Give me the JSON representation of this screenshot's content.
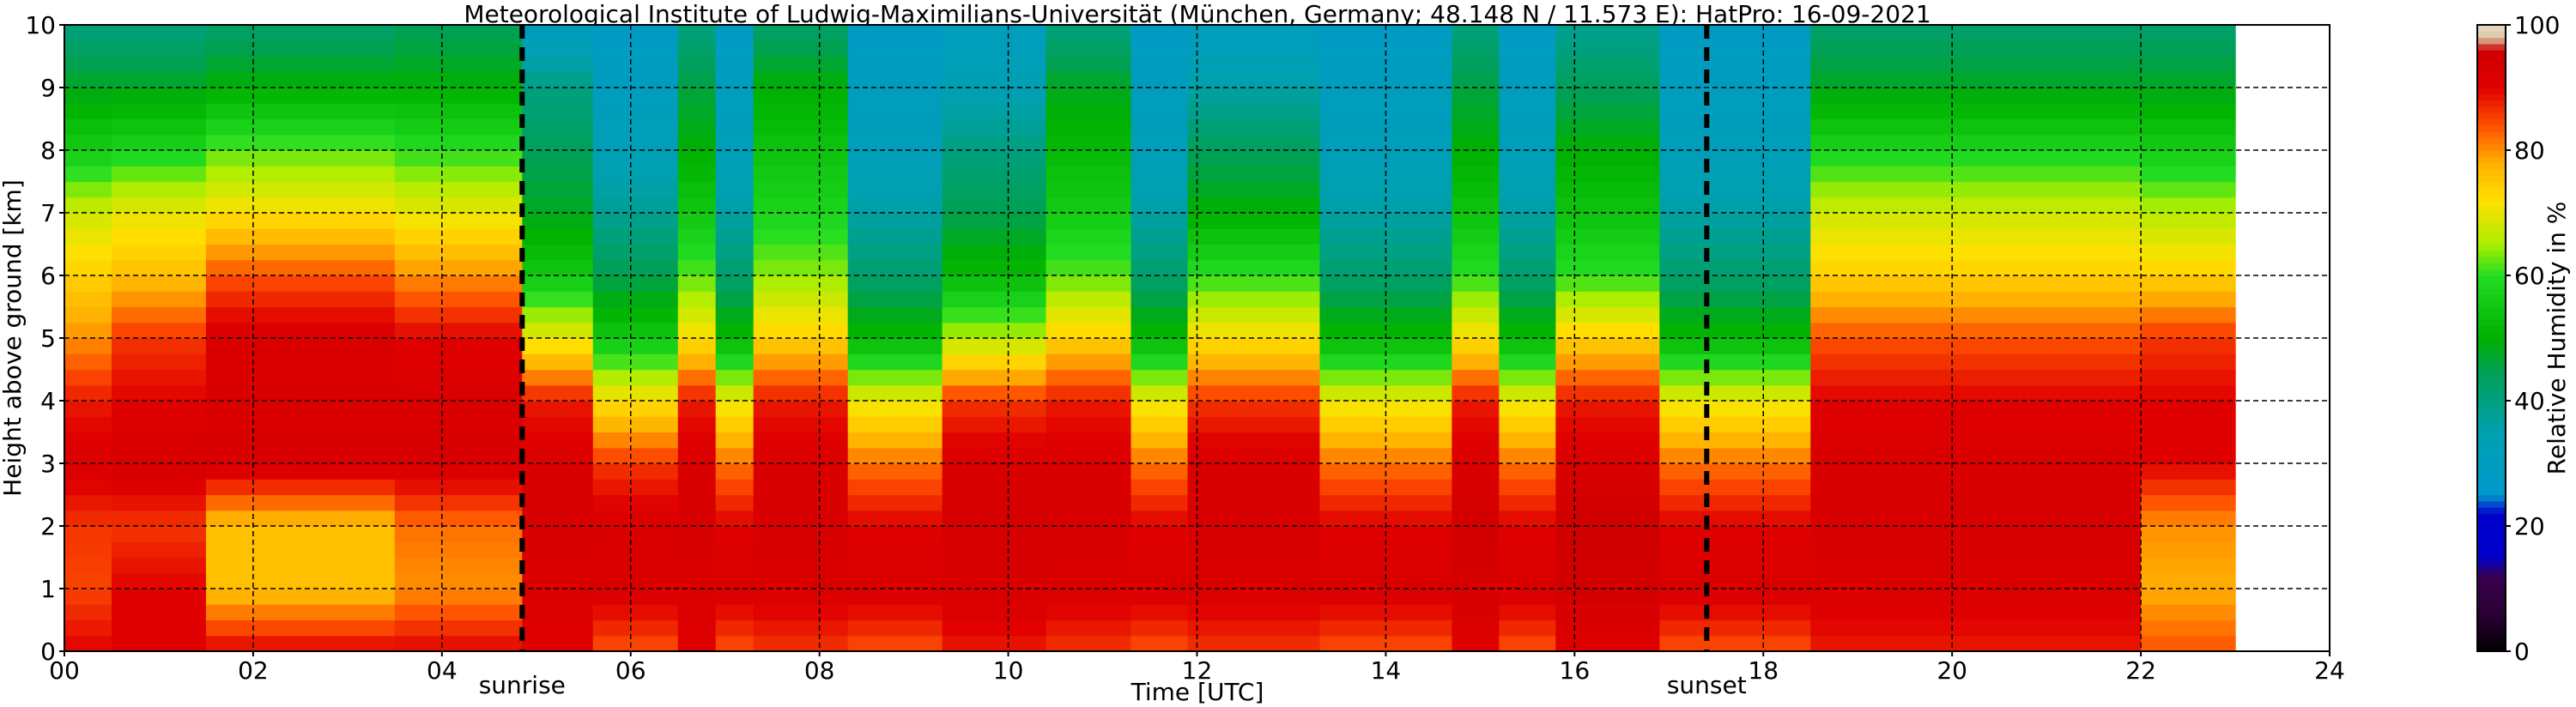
{
  "chart_data": {
    "type": "heatmap",
    "title": "Meteorological Institute of Ludwig-Maximilians-Universität (München, Germany; 48.148 N / 11.573 E):    HatPro: 16-09-2021",
    "xlabel": "Time [UTC]",
    "ylabel": "Height above ground [km]",
    "colorbar_label": "Relative Humidity in %",
    "xlim": [
      0,
      24
    ],
    "ylim": [
      0,
      10
    ],
    "x_ticks": [
      "00",
      "02",
      "04",
      "06",
      "08",
      "10",
      "12",
      "14",
      "16",
      "18",
      "20",
      "22",
      "24"
    ],
    "y_ticks": [
      "0",
      "1",
      "2",
      "3",
      "4",
      "5",
      "6",
      "7",
      "8",
      "9",
      "10"
    ],
    "colorbar_ticks": [
      "0",
      "20",
      "40",
      "60",
      "80",
      "100"
    ],
    "colorbar_range": [
      0,
      100
    ],
    "data_end_time": 23.0,
    "grid": true,
    "markers": [
      {
        "label": "sunrise",
        "time": 4.85
      },
      {
        "label": "sunset",
        "time": 17.4
      }
    ],
    "colorscale": [
      {
        "value": 0,
        "color": "#000000"
      },
      {
        "value": 6,
        "color": "#2a0033"
      },
      {
        "value": 12,
        "color": "#3a0050"
      },
      {
        "value": 15,
        "color": "#0000cc"
      },
      {
        "value": 22,
        "color": "#0000cc"
      },
      {
        "value": 25,
        "color": "#0099cc"
      },
      {
        "value": 35,
        "color": "#00a0b0"
      },
      {
        "value": 45,
        "color": "#00a050"
      },
      {
        "value": 50,
        "color": "#00b000"
      },
      {
        "value": 60,
        "color": "#22dd22"
      },
      {
        "value": 65,
        "color": "#aaee00"
      },
      {
        "value": 72,
        "color": "#ffe000"
      },
      {
        "value": 78,
        "color": "#ffb000"
      },
      {
        "value": 84,
        "color": "#ff5000"
      },
      {
        "value": 90,
        "color": "#e00000"
      },
      {
        "value": 96,
        "color": "#d00000"
      },
      {
        "value": 98,
        "color": "#d8c8a8"
      },
      {
        "value": 100,
        "color": "#e8d8c0"
      }
    ],
    "humidity_profile_columns": [
      {
        "time_start": 0.0,
        "time_end": 0.5,
        "rh_by_height_km": {
          "0": 90,
          "1": 85,
          "2": 86,
          "3": 92,
          "4": 88,
          "5": 80,
          "6": 74,
          "7": 68,
          "8": 56,
          "9": 48,
          "10": 40
        }
      },
      {
        "time_start": 0.5,
        "time_end": 1.5,
        "rh_by_height_km": {
          "0": 90,
          "1": 90,
          "2": 86,
          "3": 93,
          "4": 90,
          "5": 86,
          "6": 76,
          "7": 70,
          "8": 58,
          "9": 48,
          "10": 40
        }
      },
      {
        "time_start": 1.5,
        "time_end": 3.5,
        "rh_by_height_km": {
          "0": 90,
          "1": 76,
          "2": 76,
          "3": 93,
          "4": 92,
          "5": 92,
          "6": 84,
          "7": 72,
          "8": 62,
          "9": 50,
          "10": 42
        }
      },
      {
        "time_start": 3.5,
        "time_end": 4.85,
        "rh_by_height_km": {
          "0": 90,
          "1": 80,
          "2": 82,
          "3": 93,
          "4": 92,
          "5": 90,
          "6": 80,
          "7": 70,
          "8": 60,
          "9": 50,
          "10": 44
        }
      },
      {
        "time_start": 4.85,
        "time_end": 5.6,
        "rh_by_height_km": {
          "0": 90,
          "1": 92,
          "2": 93,
          "3": 92,
          "4": 88,
          "5": 70,
          "6": 55,
          "7": 48,
          "8": 44,
          "9": 40,
          "10": 30
        }
      },
      {
        "time_start": 5.6,
        "time_end": 6.5,
        "rh_by_height_km": {
          "0": 84,
          "1": 92,
          "2": 92,
          "3": 86,
          "4": 72,
          "5": 55,
          "6": 45,
          "7": 38,
          "8": 33,
          "9": 30,
          "10": 28
        }
      },
      {
        "time_start": 6.5,
        "time_end": 6.9,
        "rh_by_height_km": {
          "0": 90,
          "1": 92,
          "2": 93,
          "3": 92,
          "4": 88,
          "5": 72,
          "6": 62,
          "7": 55,
          "8": 50,
          "9": 46,
          "10": 40
        }
      },
      {
        "time_start": 6.9,
        "time_end": 7.3,
        "rh_by_height_km": {
          "0": 84,
          "1": 92,
          "2": 90,
          "3": 82,
          "4": 70,
          "5": 52,
          "6": 42,
          "7": 36,
          "8": 32,
          "9": 30,
          "10": 28
        }
      },
      {
        "time_start": 7.3,
        "time_end": 8.3,
        "rh_by_height_km": {
          "0": 86,
          "1": 92,
          "2": 93,
          "3": 92,
          "4": 88,
          "5": 74,
          "6": 64,
          "7": 58,
          "8": 54,
          "9": 50,
          "10": 42
        }
      },
      {
        "time_start": 8.3,
        "time_end": 9.3,
        "rh_by_height_km": {
          "0": 84,
          "1": 92,
          "2": 90,
          "3": 82,
          "4": 70,
          "5": 52,
          "6": 42,
          "7": 36,
          "8": 32,
          "9": 30,
          "10": 28
        }
      },
      {
        "time_start": 9.3,
        "time_end": 10.4,
        "rh_by_height_km": {
          "0": 88,
          "1": 93,
          "2": 94,
          "3": 92,
          "4": 86,
          "5": 66,
          "6": 52,
          "7": 45,
          "8": 40,
          "9": 34,
          "10": 30
        }
      },
      {
        "time_start": 10.4,
        "time_end": 11.3,
        "rh_by_height_km": {
          "0": 86,
          "1": 92,
          "2": 93,
          "3": 92,
          "4": 88,
          "5": 74,
          "6": 62,
          "7": 56,
          "8": 52,
          "9": 48,
          "10": 40
        }
      },
      {
        "time_start": 11.3,
        "time_end": 11.9,
        "rh_by_height_km": {
          "0": 84,
          "1": 92,
          "2": 90,
          "3": 82,
          "4": 70,
          "5": 52,
          "6": 42,
          "7": 36,
          "8": 32,
          "9": 30,
          "10": 28
        }
      },
      {
        "time_start": 11.9,
        "time_end": 13.3,
        "rh_by_height_km": {
          "0": 86,
          "1": 92,
          "2": 93,
          "3": 92,
          "4": 86,
          "5": 72,
          "6": 60,
          "7": 50,
          "8": 44,
          "9": 36,
          "10": 30
        }
      },
      {
        "time_start": 13.3,
        "time_end": 14.7,
        "rh_by_height_km": {
          "0": 84,
          "1": 92,
          "2": 90,
          "3": 82,
          "4": 70,
          "5": 52,
          "6": 42,
          "7": 36,
          "8": 32,
          "9": 30,
          "10": 28
        }
      },
      {
        "time_start": 14.7,
        "time_end": 15.2,
        "rh_by_height_km": {
          "0": 90,
          "1": 94,
          "2": 95,
          "3": 92,
          "4": 88,
          "5": 72,
          "6": 60,
          "7": 54,
          "8": 50,
          "9": 46,
          "10": 40
        }
      },
      {
        "time_start": 15.2,
        "time_end": 15.8,
        "rh_by_height_km": {
          "0": 84,
          "1": 92,
          "2": 90,
          "3": 82,
          "4": 70,
          "5": 52,
          "6": 42,
          "7": 36,
          "8": 32,
          "9": 30,
          "10": 28
        }
      },
      {
        "time_start": 15.8,
        "time_end": 16.9,
        "rh_by_height_km": {
          "0": 90,
          "1": 95,
          "2": 96,
          "3": 92,
          "4": 88,
          "5": 74,
          "6": 60,
          "7": 54,
          "8": 50,
          "9": 44,
          "10": 38
        }
      },
      {
        "time_start": 16.9,
        "time_end": 18.5,
        "rh_by_height_km": {
          "0": 84,
          "1": 92,
          "2": 90,
          "3": 82,
          "4": 70,
          "5": 52,
          "6": 42,
          "7": 36,
          "8": 32,
          "9": 30,
          "10": 28
        }
      },
      {
        "time_start": 18.5,
        "time_end": 22.0,
        "rh_by_height_km": {
          "0": 88,
          "1": 92,
          "2": 93,
          "3": 92,
          "4": 90,
          "5": 84,
          "6": 74,
          "7": 68,
          "8": 58,
          "9": 48,
          "10": 42
        }
      },
      {
        "time_start": 22.0,
        "time_end": 23.0,
        "rh_by_height_km": {
          "0": 84,
          "1": 78,
          "2": 80,
          "3": 90,
          "4": 90,
          "5": 86,
          "6": 74,
          "7": 66,
          "8": 56,
          "9": 48,
          "10": 42
        }
      }
    ]
  }
}
